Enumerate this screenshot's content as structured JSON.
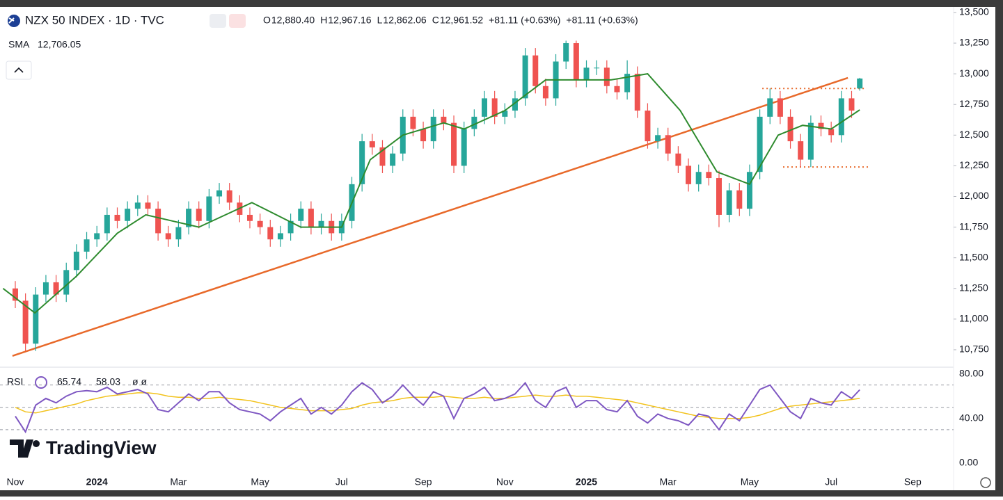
{
  "chart_data": {
    "type": "candlestick",
    "title": "NZX 50 INDEX · 1D · TVC",
    "quote": [
      {
        "key": "O",
        "value": "12,880.40"
      },
      {
        "key": "H",
        "value": "12,967.16"
      },
      {
        "key": "L",
        "value": "12,862.06"
      },
      {
        "key": "C",
        "value": "12,961.52"
      }
    ],
    "change": "+81.11 (+0.63%)",
    "watermark": "TradingView",
    "up_color": "#26a69a",
    "down_color": "#ef5350",
    "xlim": [
      -0.375,
      23.0
    ],
    "xticks": [
      {
        "value": 0,
        "label": "Nov"
      },
      {
        "value": 2,
        "label": "2024"
      },
      {
        "value": 4,
        "label": "Mar"
      },
      {
        "value": 6,
        "label": "May"
      },
      {
        "value": 8,
        "label": "Jul"
      },
      {
        "value": 10,
        "label": "Sep"
      },
      {
        "value": 12,
        "label": "Nov"
      },
      {
        "value": 14,
        "label": "2025"
      },
      {
        "value": 16,
        "label": "Mar"
      },
      {
        "value": 18,
        "label": "May"
      },
      {
        "value": 20,
        "label": "Jul"
      },
      {
        "value": 22,
        "label": "Sep"
      }
    ],
    "ylim": [
      10608,
      13545
    ],
    "yticks": [
      {
        "value": 10750,
        "label": "10,750"
      },
      {
        "value": 11000,
        "label": "11,000"
      },
      {
        "value": 11250,
        "label": "11,250"
      },
      {
        "value": 11500,
        "label": "11,500"
      },
      {
        "value": 11750,
        "label": "11,750"
      },
      {
        "value": 12000,
        "label": "12,000"
      },
      {
        "value": 12250,
        "label": "12,250"
      },
      {
        "value": 12500,
        "label": "12,500"
      },
      {
        "value": 12750,
        "label": "12,750"
      },
      {
        "value": 13000,
        "label": "13,000"
      },
      {
        "value": 13250,
        "label": "13,250"
      },
      {
        "value": 13500,
        "label": "13,500"
      }
    ],
    "x": [
      0,
      0.25,
      0.5,
      0.75,
      1,
      1.25,
      1.5,
      1.75,
      2,
      2.25,
      2.5,
      2.75,
      3,
      3.25,
      3.5,
      3.75,
      4,
      4.25,
      4.5,
      4.75,
      5,
      5.25,
      5.5,
      5.75,
      6,
      6.25,
      6.5,
      6.75,
      7,
      7.25,
      7.5,
      7.75,
      8,
      8.25,
      8.5,
      8.75,
      9,
      9.25,
      9.5,
      9.75,
      10,
      10.25,
      10.5,
      10.75,
      11,
      11.25,
      11.5,
      11.75,
      12,
      12.25,
      12.5,
      12.75,
      13,
      13.25,
      13.5,
      13.75,
      14,
      14.25,
      14.5,
      14.75,
      15,
      15.25,
      15.5,
      15.75,
      16,
      16.25,
      16.5,
      16.75,
      17,
      17.25,
      17.5,
      17.75,
      18,
      18.25,
      18.5,
      18.75,
      19,
      19.25,
      19.5,
      19.75,
      20,
      20.25,
      20.5,
      20.7
    ],
    "candles": [
      [
        11250,
        11310,
        11090,
        11150
      ],
      [
        11150,
        11210,
        10740,
        10800
      ],
      [
        10800,
        11260,
        10740,
        11200
      ],
      [
        11200,
        11360,
        11140,
        11300
      ],
      [
        11300,
        11360,
        11140,
        11200
      ],
      [
        11200,
        11460,
        11140,
        11400
      ],
      [
        11400,
        11610,
        11340,
        11550
      ],
      [
        11550,
        11710,
        11490,
        11650
      ],
      [
        11650,
        11760,
        11590,
        11700
      ],
      [
        11700,
        11910,
        11640,
        11850
      ],
      [
        11850,
        11910,
        11740,
        11800
      ],
      [
        11800,
        11960,
        11740,
        11900
      ],
      [
        11900,
        12010,
        11840,
        11950
      ],
      [
        11950,
        12010,
        11840,
        11900
      ],
      [
        11900,
        11960,
        11640,
        11700
      ],
      [
        11700,
        11760,
        11590,
        11650
      ],
      [
        11650,
        11810,
        11590,
        11750
      ],
      [
        11750,
        11960,
        11690,
        11900
      ],
      [
        11900,
        11960,
        11740,
        11800
      ],
      [
        11800,
        12060,
        11740,
        12000
      ],
      [
        12000,
        12110,
        11940,
        12050
      ],
      [
        12050,
        12110,
        11890,
        11950
      ],
      [
        11950,
        12010,
        11790,
        11850
      ],
      [
        11850,
        11910,
        11740,
        11800
      ],
      [
        11800,
        11860,
        11690,
        11750
      ],
      [
        11750,
        11810,
        11590,
        11650
      ],
      [
        11650,
        11760,
        11590,
        11700
      ],
      [
        11700,
        11860,
        11640,
        11800
      ],
      [
        11800,
        11960,
        11740,
        11900
      ],
      [
        11900,
        11960,
        11690,
        11750
      ],
      [
        11750,
        11860,
        11690,
        11800
      ],
      [
        11800,
        11860,
        11640,
        11700
      ],
      [
        11700,
        11860,
        11640,
        11800
      ],
      [
        11800,
        12160,
        11740,
        12100
      ],
      [
        12100,
        12510,
        12040,
        12450
      ],
      [
        12450,
        12510,
        12340,
        12400
      ],
      [
        12400,
        12460,
        12190,
        12250
      ],
      [
        12250,
        12410,
        12190,
        12350
      ],
      [
        12350,
        12710,
        12290,
        12650
      ],
      [
        12650,
        12710,
        12490,
        12550
      ],
      [
        12550,
        12610,
        12390,
        12450
      ],
      [
        12450,
        12710,
        12390,
        12650
      ],
      [
        12650,
        12710,
        12540,
        12600
      ],
      [
        12600,
        12660,
        12190,
        12250
      ],
      [
        12250,
        12610,
        12190,
        12550
      ],
      [
        12550,
        12710,
        12490,
        12650
      ],
      [
        12650,
        12860,
        12590,
        12800
      ],
      [
        12800,
        12860,
        12590,
        12650
      ],
      [
        12650,
        12760,
        12590,
        12700
      ],
      [
        12700,
        12860,
        12640,
        12800
      ],
      [
        12800,
        13210,
        12740,
        13150
      ],
      [
        13150,
        13210,
        12840,
        12900
      ],
      [
        12900,
        12960,
        12740,
        12800
      ],
      [
        12800,
        13160,
        12740,
        13100
      ],
      [
        13100,
        13270,
        13040,
        13250
      ],
      [
        13250,
        13270,
        12890,
        12950
      ],
      [
        12950,
        13110,
        12890,
        13050
      ],
      [
        13050,
        13110,
        12990,
        13050
      ],
      [
        13050,
        13110,
        12840,
        12900
      ],
      [
        12900,
        12960,
        12790,
        12850
      ],
      [
        12850,
        13110,
        12790,
        13000
      ],
      [
        13000,
        13060,
        12640,
        12700
      ],
      [
        12700,
        12760,
        12390,
        12450
      ],
      [
        12450,
        12560,
        12390,
        12500
      ],
      [
        12500,
        12560,
        12290,
        12350
      ],
      [
        12350,
        12410,
        12190,
        12250
      ],
      [
        12250,
        12310,
        12040,
        12100
      ],
      [
        12100,
        12260,
        12040,
        12200
      ],
      [
        12200,
        12260,
        12090,
        12150
      ],
      [
        12150,
        12210,
        11750,
        11850
      ],
      [
        11850,
        12110,
        11790,
        12050
      ],
      [
        12050,
        12110,
        11840,
        11900
      ],
      [
        11900,
        12260,
        11840,
        12200
      ],
      [
        12200,
        12710,
        12140,
        12650
      ],
      [
        12650,
        12880,
        12590,
        12800
      ],
      [
        12800,
        12860,
        12590,
        12650
      ],
      [
        12650,
        12710,
        12390,
        12450
      ],
      [
        12450,
        12510,
        12240,
        12300
      ],
      [
        12300,
        12660,
        12240,
        12600
      ],
      [
        12600,
        12660,
        12490,
        12550
      ],
      [
        12550,
        12610,
        12440,
        12500
      ],
      [
        12500,
        12860,
        12440,
        12800
      ],
      [
        12800,
        12860,
        12640,
        12700
      ],
      [
        12880.4,
        12967.16,
        12862.06,
        12961.52
      ]
    ],
    "sma": {
      "name": "SMA",
      "color": "#2e8b2e",
      "value_label": "12,706.05",
      "x": [
        -0.3,
        0.48,
        1.5,
        2.5,
        3.2,
        4.5,
        5.8,
        7.0,
        8.0,
        8.7,
        9.5,
        10.5,
        11.0,
        12.0,
        13.0,
        14.0,
        14.6,
        15.5,
        16.3,
        17.2,
        18.0,
        18.7,
        19.3,
        20.0,
        20.7
      ],
      "values": [
        11250,
        11050,
        11350,
        11700,
        11850,
        11750,
        11950,
        11750,
        11750,
        12300,
        12500,
        12600,
        12550,
        12700,
        12950,
        12950,
        12950,
        13000,
        12700,
        12200,
        12100,
        12500,
        12580,
        12550,
        12706.05
      ]
    },
    "trendline": {
      "color": "#e8692a",
      "x": [
        -0.07,
        20.41
      ],
      "values": [
        10700,
        12967
      ]
    },
    "levels": [
      {
        "x": [
          18.31,
          20.87
        ],
        "value": 12880
      },
      {
        "x": [
          18.82,
          20.96
        ],
        "value": 12240
      }
    ],
    "rsi": {
      "name": "RSI",
      "color": "#7e57c2",
      "ma_color": "#f2c21b",
      "value_label": "65.74",
      "ma_value_label": "58.03",
      "extra": "ø ø",
      "ylim": [
        -10,
        86
      ],
      "yticks": [
        {
          "value": 0,
          "label": "0.00"
        },
        {
          "value": 40,
          "label": "40.00"
        },
        {
          "value": 80,
          "label": "80.00"
        }
      ],
      "bands": [
        70,
        50,
        30
      ],
      "values": [
        42,
        28,
        52,
        58,
        54,
        60,
        64,
        65,
        64,
        68,
        62,
        64,
        66,
        62,
        48,
        46,
        54,
        62,
        56,
        64,
        64,
        54,
        48,
        46,
        44,
        38,
        46,
        52,
        58,
        44,
        50,
        44,
        52,
        64,
        72,
        66,
        54,
        60,
        70,
        60,
        52,
        64,
        60,
        40,
        58,
        62,
        68,
        56,
        58,
        62,
        72,
        56,
        50,
        64,
        68,
        50,
        56,
        56,
        48,
        46,
        56,
        42,
        36,
        44,
        40,
        38,
        34,
        44,
        42,
        30,
        44,
        38,
        52,
        66,
        70,
        58,
        46,
        40,
        58,
        54,
        52,
        64,
        58,
        65.74
      ],
      "ma": [
        50,
        46,
        45,
        47,
        49,
        51,
        53,
        56,
        58,
        60,
        61,
        62,
        63,
        63,
        62,
        60,
        59,
        59,
        58,
        58,
        59,
        58,
        57,
        56,
        54,
        52,
        50,
        49,
        48,
        47,
        47,
        47,
        48,
        49,
        52,
        54,
        55,
        56,
        58,
        59,
        59,
        59,
        60,
        59,
        58,
        58,
        59,
        58,
        58,
        59,
        60,
        61,
        60,
        60,
        61,
        60,
        60,
        59,
        58,
        57,
        56,
        54,
        52,
        50,
        48,
        46,
        44,
        42,
        41,
        40,
        40,
        40,
        41,
        43,
        46,
        49,
        51,
        52,
        53,
        54,
        55,
        56,
        57,
        58.03
      ]
    }
  }
}
